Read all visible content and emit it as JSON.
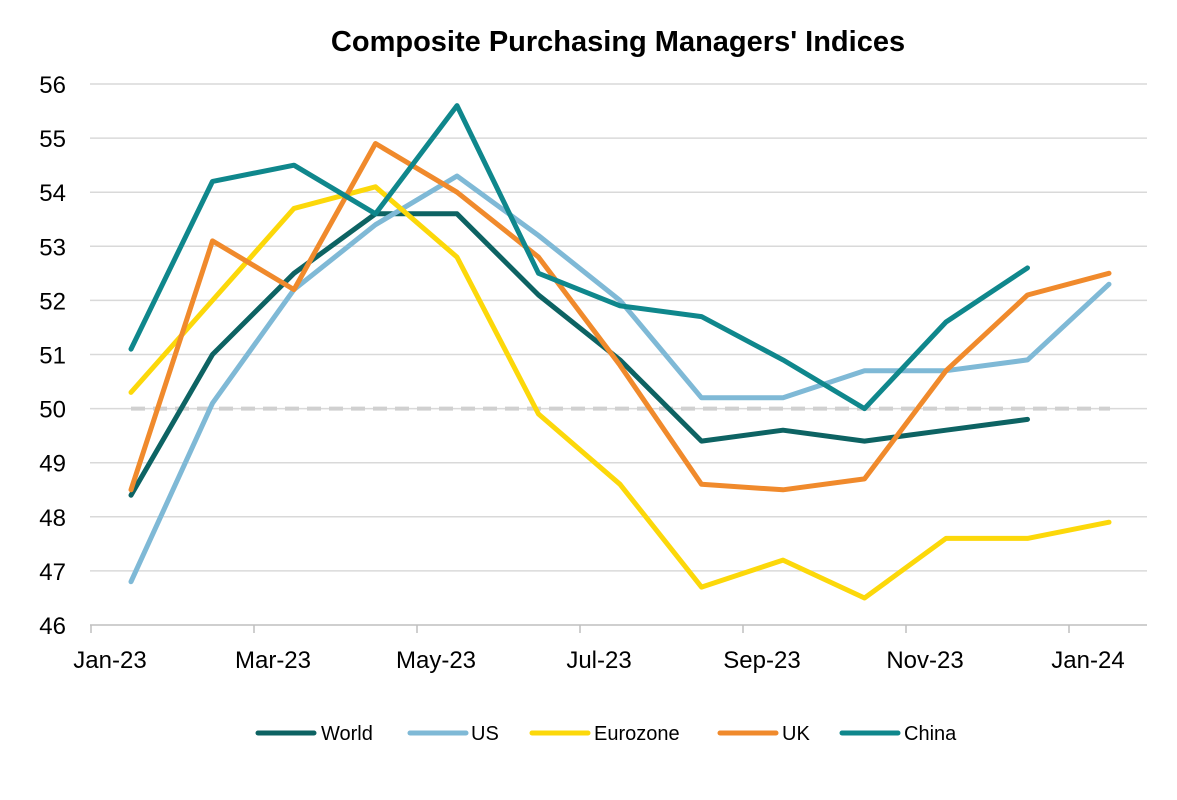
{
  "chart_data": {
    "type": "line",
    "title": "Composite Purchasing Managers' Indices",
    "xlabel": "",
    "ylabel": "",
    "ylim": [
      46,
      56
    ],
    "yticks": [
      "46",
      "47",
      "48",
      "49",
      "50",
      "51",
      "52",
      "53",
      "54",
      "55",
      "56"
    ],
    "xticks": [
      "Jan-23",
      "Mar-23",
      "May-23",
      "Jul-23",
      "Sep-23",
      "Nov-23",
      "Jan-24"
    ],
    "x": [
      "Jan-23",
      "Feb-23",
      "Mar-23",
      "Apr-23",
      "May-23",
      "Jun-23",
      "Jul-23",
      "Aug-23",
      "Sep-23",
      "Oct-23",
      "Nov-23",
      "Dec-23",
      "Jan-24"
    ],
    "reference_line": {
      "value": 50,
      "style": "dashed",
      "color": "#d0d0d0"
    },
    "grid": true,
    "legend_position": "bottom",
    "series": [
      {
        "name": "World",
        "color": "#0d6363",
        "values": [
          48.4,
          51.0,
          52.5,
          53.6,
          53.6,
          52.1,
          50.9,
          49.4,
          49.6,
          49.4,
          49.6,
          49.8,
          null
        ]
      },
      {
        "name": "US",
        "color": "#7fb9d6",
        "values": [
          46.8,
          50.1,
          52.2,
          53.4,
          54.3,
          53.2,
          52.0,
          50.2,
          50.2,
          50.7,
          50.7,
          50.9,
          52.3
        ]
      },
      {
        "name": "Eurozone",
        "color": "#fcd80a",
        "values": [
          50.3,
          52.0,
          53.7,
          54.1,
          52.8,
          49.9,
          48.6,
          46.7,
          47.2,
          46.5,
          47.6,
          47.6,
          47.9
        ]
      },
      {
        "name": "UK",
        "color": "#f08a2c",
        "values": [
          48.5,
          53.1,
          52.2,
          54.9,
          54.0,
          52.8,
          50.8,
          48.6,
          48.5,
          48.7,
          50.7,
          52.1,
          52.5
        ]
      },
      {
        "name": "China",
        "color": "#0f878c",
        "values": [
          51.1,
          54.2,
          54.5,
          53.6,
          55.6,
          52.5,
          51.9,
          51.7,
          50.9,
          50.0,
          51.6,
          52.6,
          null
        ]
      }
    ]
  }
}
